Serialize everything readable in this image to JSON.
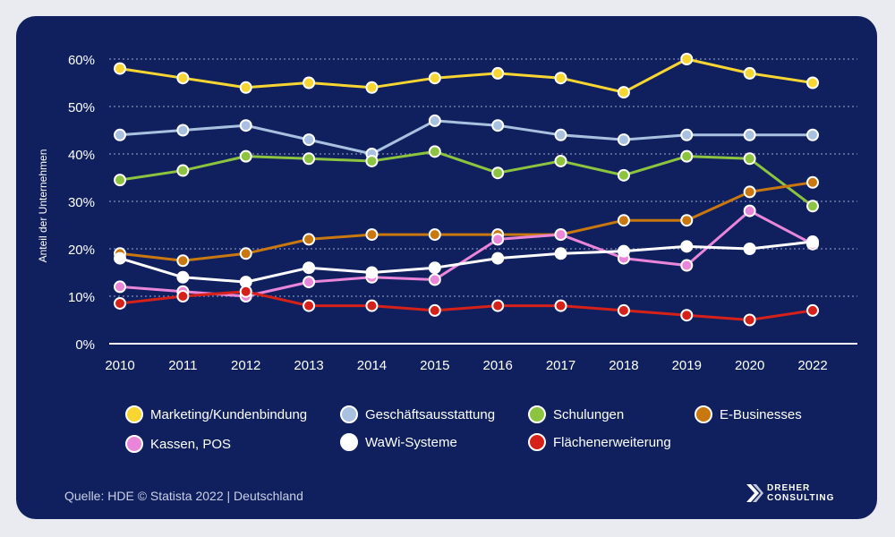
{
  "chart_data": {
    "type": "line",
    "title": "",
    "xlabel": "",
    "ylabel": "Anteil der Unternehmen",
    "ylim": [
      0,
      60
    ],
    "y_ticks": [
      "0%",
      "10%",
      "20%",
      "30%",
      "40%",
      "50%",
      "60%"
    ],
    "y_tick_values": [
      0,
      10,
      20,
      30,
      40,
      50,
      60
    ],
    "grid": "horizontal dotted",
    "categories": [
      "2010",
      "2011",
      "2012",
      "2013",
      "2014",
      "2015",
      "2016",
      "2017",
      "2018",
      "2019",
      "2020",
      "2022"
    ],
    "series": [
      {
        "name": "Marketing/Kundenbindung",
        "color": "#f9d531",
        "values": [
          58,
          56,
          54,
          55,
          54,
          56,
          57,
          56,
          53,
          60,
          57,
          55
        ]
      },
      {
        "name": "Geschäftsausstattung",
        "color": "#a9c1e0",
        "values": [
          44,
          45,
          46,
          43,
          40,
          47,
          46,
          44,
          43,
          44,
          44,
          44
        ]
      },
      {
        "name": "Schulungen",
        "color": "#8cc43f",
        "values": [
          34.5,
          36.5,
          39.5,
          39,
          38.5,
          40.5,
          36,
          38.5,
          35.5,
          39.5,
          39,
          29
        ]
      },
      {
        "name": "E-Businesses",
        "color": "#c9770f",
        "values": [
          19,
          17.5,
          19,
          22,
          23,
          23,
          23,
          23,
          26,
          26,
          32,
          34
        ]
      },
      {
        "name": "Kassen, POS",
        "color": "#ea86d9",
        "values": [
          12,
          11,
          10,
          13,
          14,
          13.5,
          22,
          23,
          18,
          16.5,
          28,
          21
        ]
      },
      {
        "name": "WaWi-Systeme",
        "color": "#ffffff",
        "values": [
          18,
          14,
          13,
          16,
          15,
          16,
          18,
          19,
          19.5,
          20.5,
          20,
          21.5
        ]
      },
      {
        "name": "Flächenerweiterung",
        "color": "#d5211a",
        "values": [
          8.5,
          10,
          11,
          8,
          8,
          7,
          8,
          8,
          7,
          6,
          5,
          7
        ]
      }
    ]
  },
  "source": "Quelle: HDE © Statista 2022 | Deutschland",
  "logo": {
    "line1": "DREHER",
    "line2": "CONSULTING"
  }
}
